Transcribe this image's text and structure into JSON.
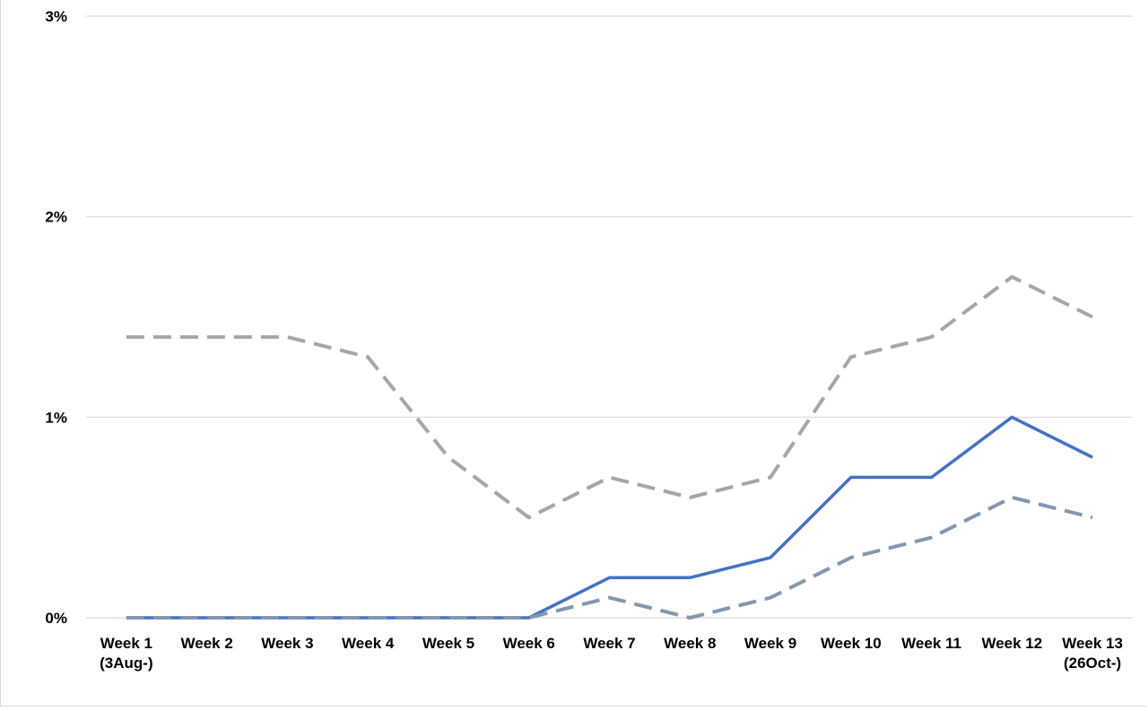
{
  "chart_data": {
    "type": "line",
    "categories": [
      [
        "Week 1",
        "(3Aug-)"
      ],
      [
        "Week 2"
      ],
      [
        "Week 3"
      ],
      [
        "Week 4"
      ],
      [
        "Week 5"
      ],
      [
        "Week 6"
      ],
      [
        "Week 7"
      ],
      [
        "Week 8"
      ],
      [
        "Week 9"
      ],
      [
        "Week 10"
      ],
      [
        "Week 11"
      ],
      [
        "Week 12"
      ],
      [
        "Week 13",
        "(26Oct-)"
      ]
    ],
    "y_ticks": [
      "0%",
      "1%",
      "2%",
      "3%"
    ],
    "ylim": [
      0,
      3
    ],
    "y_unit": "%",
    "grid": true,
    "legend": "none",
    "title": "",
    "xlabel": "",
    "ylabel": "",
    "series": [
      {
        "values": [
          1.4,
          1.4,
          1.4,
          1.3,
          0.8,
          0.5,
          0.7,
          0.6,
          0.7,
          1.3,
          1.4,
          1.7,
          1.5
        ],
        "color": "#a6a6a6",
        "dash": "dashed",
        "role": "upper"
      },
      {
        "values": [
          0,
          0,
          0,
          0,
          0,
          0,
          0.2,
          0.2,
          0.3,
          0.7,
          0.7,
          1.0,
          0.8
        ],
        "color": "#4472c4",
        "dash": "solid",
        "role": "estimate"
      },
      {
        "values": [
          0,
          0,
          0,
          0,
          0,
          0,
          0.1,
          0,
          0.1,
          0.3,
          0.4,
          0.6,
          0.5
        ],
        "color": "#8497b0",
        "dash": "dashed",
        "role": "lower"
      }
    ]
  }
}
